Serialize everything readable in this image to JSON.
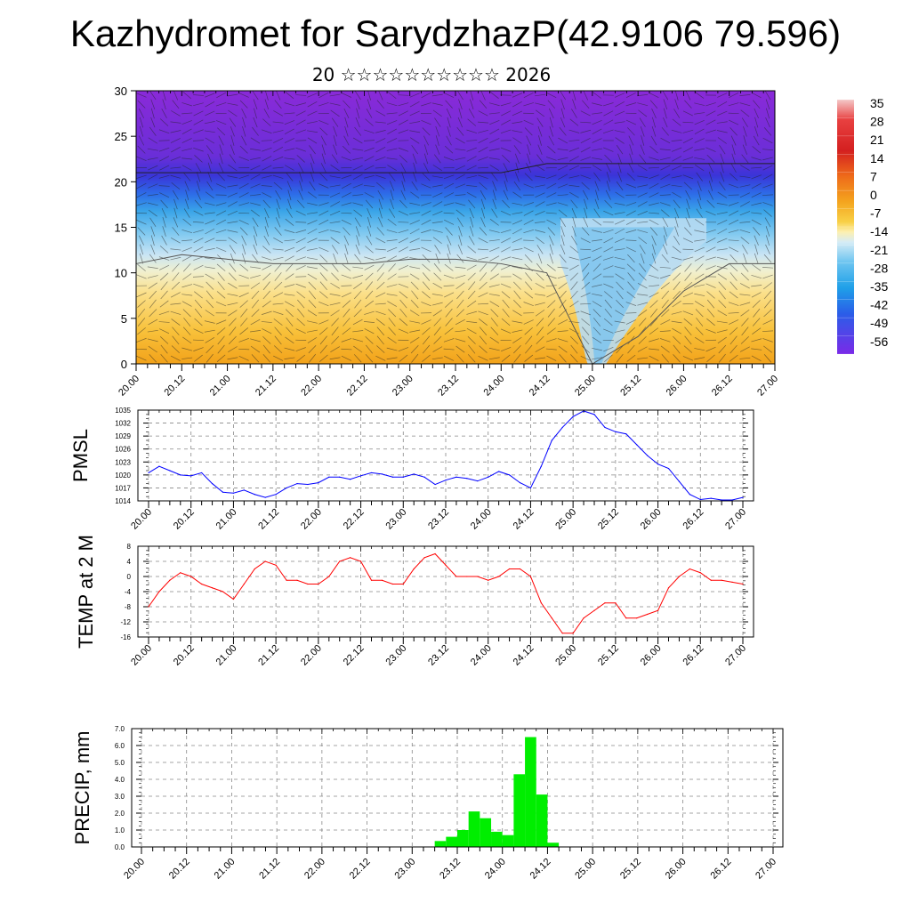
{
  "title": "Kazhydromet for SarydzhazP(42.9106 79.596)",
  "subtitle": "20 ☆☆☆☆☆☆☆☆☆☆ 2026",
  "time_labels": [
    "20.00",
    "20.12",
    "21.00",
    "21.12",
    "22.00",
    "22.12",
    "23.00",
    "23.12",
    "24.00",
    "24.12",
    "25.00",
    "25.12",
    "26.00",
    "26.12",
    "27.00"
  ],
  "colors": {
    "pmsl_line": "#0000ff",
    "temp_line": "#ff0000",
    "precip_bar": "#00ee00"
  },
  "chart_data": [
    {
      "type": "heatmap",
      "name": "cross-section",
      "xlabel": "",
      "ylabel": "",
      "xlim": [
        0,
        14
      ],
      "ylim": [
        0,
        30
      ],
      "yticks": [
        0,
        5,
        10,
        15,
        20,
        25,
        30
      ],
      "levels": [
        35,
        28,
        21,
        14,
        7,
        0,
        -7,
        -14,
        -21,
        -28,
        -35,
        -42,
        -49,
        -56
      ],
      "freezing_level_km": [
        11,
        12,
        11.5,
        11,
        11,
        11,
        11.5,
        11.5,
        11,
        10,
        0,
        3,
        8,
        11,
        11
      ],
      "tropopause_level_km": [
        21,
        21,
        21,
        21,
        21,
        21,
        21,
        21,
        21,
        22,
        22,
        22,
        22,
        22,
        22
      ]
    },
    {
      "type": "line",
      "name": "PMSL",
      "ylabel": "PMSL",
      "ylim": [
        1014,
        1035
      ],
      "yticks": [
        1014,
        1017,
        1020,
        1023,
        1026,
        1029,
        1032,
        1035
      ],
      "x": [
        0,
        0.25,
        0.5,
        0.75,
        1,
        1.25,
        1.5,
        1.75,
        2,
        2.25,
        2.5,
        2.75,
        3,
        3.25,
        3.5,
        3.75,
        4,
        4.25,
        4.5,
        4.75,
        5,
        5.25,
        5.5,
        5.75,
        6,
        6.25,
        6.5,
        6.75,
        7,
        7.25,
        7.5,
        7.75,
        8,
        8.25,
        8.5,
        8.75,
        9,
        9.25,
        9.5,
        9.75,
        10,
        10.25,
        10.5,
        10.75,
        11,
        11.25,
        11.5,
        11.75,
        12,
        12.25,
        12.5,
        12.75,
        13,
        13.25,
        13.5,
        13.75,
        14
      ],
      "values": [
        1020.5,
        1022,
        1021,
        1020,
        1019.8,
        1020.5,
        1018,
        1016,
        1015.8,
        1016.5,
        1015.5,
        1014.8,
        1015.5,
        1017,
        1018,
        1017.8,
        1018.2,
        1019.5,
        1019.5,
        1019,
        1019.8,
        1020.5,
        1020.2,
        1019.5,
        1019.5,
        1020.2,
        1019.5,
        1017.8,
        1018.8,
        1019.5,
        1019.2,
        1018.6,
        1019.5,
        1020.8,
        1020,
        1018.2,
        1017,
        1022,
        1028,
        1031,
        1033.5,
        1034.8,
        1034,
        1031,
        1030,
        1029.5,
        1027,
        1024.5,
        1022.5,
        1021.5,
        1018.5,
        1015.5,
        1014.3,
        1014.6,
        1014.2,
        1014.2,
        1014.8
      ]
    },
    {
      "type": "line",
      "name": "TEMP",
      "ylabel": "TEMP at 2 M",
      "ylim": [
        -16,
        8
      ],
      "yticks": [
        -16,
        -12,
        -8,
        -4,
        0,
        4,
        8
      ],
      "x": [
        0,
        0.25,
        0.5,
        0.75,
        1,
        1.25,
        1.5,
        1.75,
        2,
        2.25,
        2.5,
        2.75,
        3,
        3.25,
        3.5,
        3.75,
        4,
        4.25,
        4.5,
        4.75,
        5,
        5.25,
        5.5,
        5.75,
        6,
        6.25,
        6.5,
        6.75,
        7,
        7.25,
        7.5,
        7.75,
        8,
        8.25,
        8.5,
        8.75,
        9,
        9.25,
        9.5,
        9.75,
        10,
        10.25,
        10.5,
        10.75,
        11,
        11.25,
        11.5,
        11.75,
        12,
        12.25,
        12.5,
        12.75,
        13,
        13.25,
        13.5,
        13.75,
        14
      ],
      "values": [
        -8,
        -4,
        -1,
        1,
        0,
        -2,
        -3,
        -4,
        -6,
        -2,
        2,
        4,
        3,
        -1,
        -1,
        -2,
        -2,
        0,
        4,
        5,
        4,
        -1,
        -1,
        -2,
        -2,
        2,
        5,
        6,
        3,
        0,
        0,
        0,
        -1,
        0,
        2,
        2,
        0,
        -7,
        -11,
        -15,
        -15,
        -11,
        -9,
        -7,
        -7,
        -11,
        -11,
        -10,
        -9,
        -3,
        0,
        2,
        1,
        -1,
        -1,
        -1.5,
        -2
      ]
    },
    {
      "type": "bar",
      "name": "PRECIP",
      "ylabel": "PRECIP, mm",
      "ylim": [
        0,
        7
      ],
      "yticks": [
        0,
        1,
        2,
        3,
        4,
        5,
        6,
        7
      ],
      "ytick_labels": [
        "0.0",
        "1.0",
        "2.0",
        "3.0",
        "4.0",
        "5.0",
        "6.0",
        "7.0"
      ],
      "x": [
        6.625,
        6.875,
        7.125,
        7.375,
        7.625,
        7.875,
        8.125,
        8.375,
        8.625,
        8.875,
        9.125,
        9.375
      ],
      "values": [
        0.35,
        0.6,
        1.0,
        2.1,
        1.7,
        0.9,
        0.7,
        4.3,
        6.5,
        3.1,
        0.25,
        0.0
      ]
    }
  ]
}
